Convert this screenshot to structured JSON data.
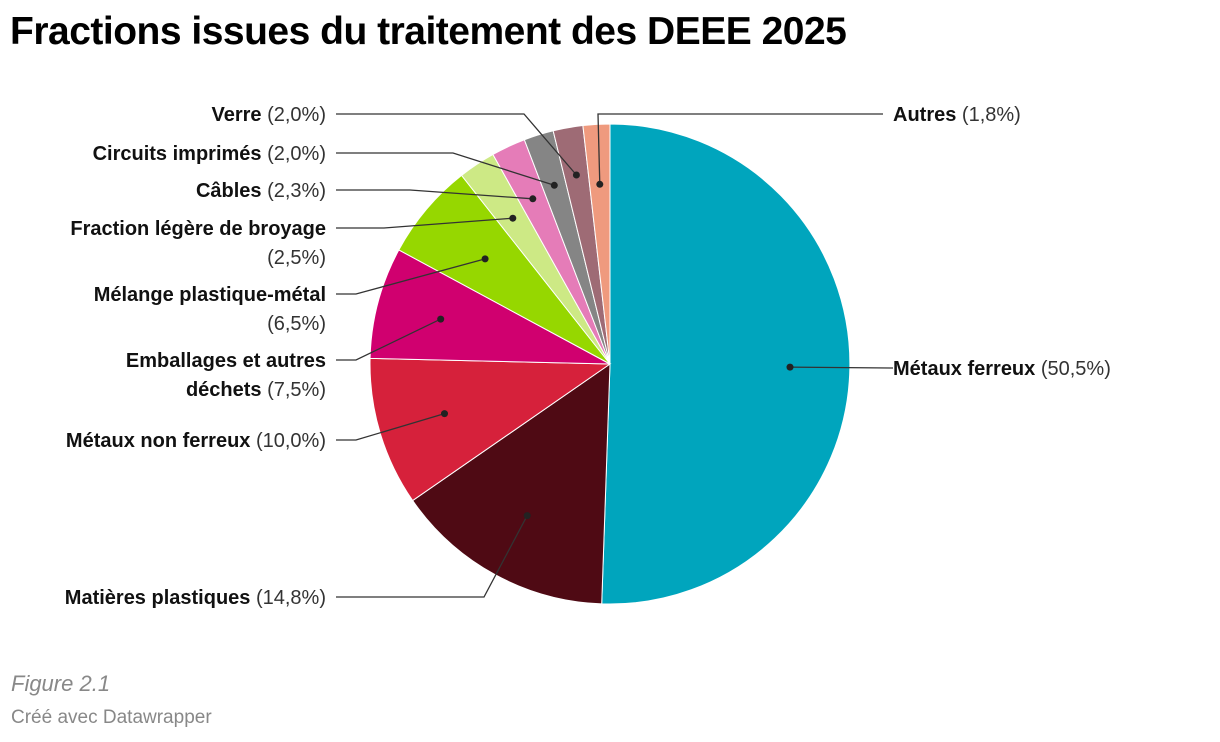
{
  "title": "Fractions issues du traitement des DEEE 2025",
  "caption": "Figure 2.1",
  "credit": "Créé avec Datawrapper",
  "chart_data": {
    "type": "pie",
    "title": "Fractions issues du traitement des DEEE 2025",
    "unit": "%",
    "slices": [
      {
        "label": "Métaux ferreux",
        "value": 50.5,
        "display": "(50,5%)",
        "color": "#00a5bd"
      },
      {
        "label": "Matières plastiques",
        "value": 14.8,
        "display": "(14,8%)",
        "color": "#4f0a14"
      },
      {
        "label": "Métaux non ferreux",
        "value": 10.0,
        "display": "(10,0%)",
        "color": "#d6213b"
      },
      {
        "label": "Emballages et autres déchets",
        "value": 7.5,
        "display": "(7,5%)",
        "color": "#d0006f"
      },
      {
        "label": "Mélange plastique-métal",
        "value": 6.5,
        "display": "(6,5%)",
        "color": "#96d700"
      },
      {
        "label": "Fraction légère de broyage",
        "value": 2.5,
        "display": "(2,5%)",
        "color": "#cde985"
      },
      {
        "label": "Câbles",
        "value": 2.3,
        "display": "(2,3%)",
        "color": "#e57cb8"
      },
      {
        "label": "Circuits imprimés",
        "value": 2.0,
        "display": "(2,0%)",
        "color": "#858585"
      },
      {
        "label": "Verre",
        "value": 2.0,
        "display": "(2,0%)",
        "color": "#9e6b75"
      },
      {
        "label": "Autres",
        "value": 1.8,
        "display": "(1,8%)",
        "color": "#ef9a7e"
      }
    ]
  }
}
